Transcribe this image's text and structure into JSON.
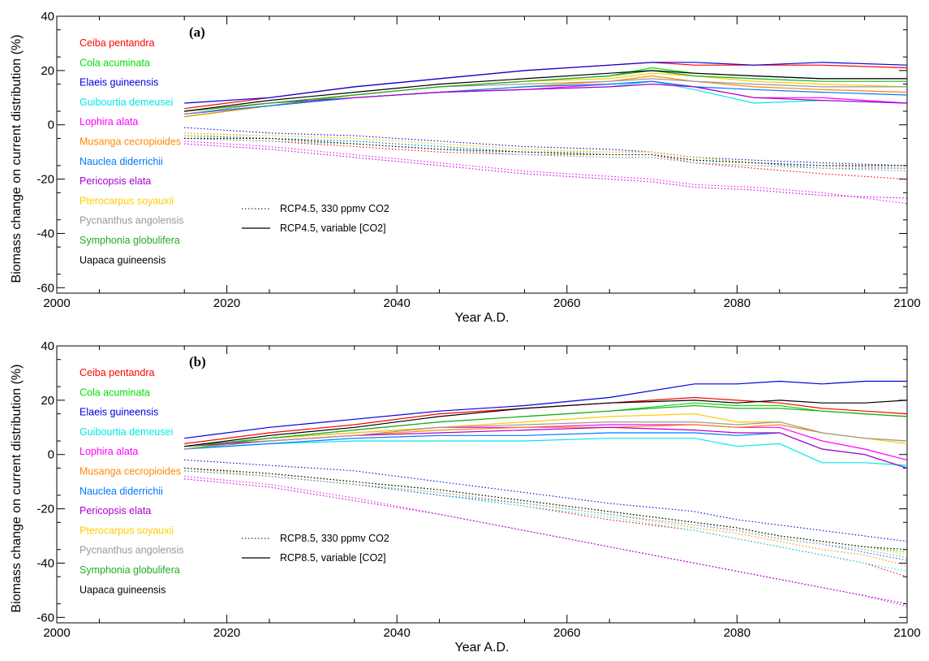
{
  "figure": {
    "panels": [
      {
        "panel_label": "(a)",
        "xlabel": "Year A.D.",
        "ylabel": "Biomass change on current distribution (%)",
        "legend_dotted": "RCP4.5, 330 ppmv CO2",
        "legend_solid": "RCP4.5, variable [CO2]"
      },
      {
        "panel_label": "(b)",
        "xlabel": "Year A.D.",
        "ylabel": "Biomass change on current distribution (%)",
        "legend_dotted": "RCP8.5, 330 ppmv CO2",
        "legend_solid": "RCP8.5, variable [CO2]"
      }
    ]
  },
  "chart_data": [
    {
      "type": "line",
      "title": "(a)",
      "xlabel": "Year A.D.",
      "ylabel": "Biomass change on current distribution (%)",
      "xlim": [
        2000,
        2100
      ],
      "ylim": [
        -62,
        40
      ],
      "xticks": [
        2000,
        2020,
        2040,
        2060,
        2080,
        2100
      ],
      "yticks": [
        40,
        20,
        0,
        -20,
        -40,
        -60
      ],
      "grid": false,
      "legend_placement": "left",
      "line_styles": {
        "dotted": "RCP4.5, 330 ppmv CO2",
        "solid": "RCP4.5, variable [CO2]"
      },
      "x": [
        2015,
        2025,
        2035,
        2045,
        2055,
        2065,
        2070,
        2075,
        2082,
        2090,
        2100
      ],
      "series": [
        {
          "name": "Ceiba pentandra",
          "color": "#ff0000",
          "variable": [
            6,
            10,
            14,
            17,
            20,
            22,
            23,
            22,
            22,
            22,
            21
          ],
          "fixed": [
            -5,
            -6,
            -8,
            -10,
            -11,
            -11,
            -11,
            -14,
            -16,
            -18,
            -20
          ]
        },
        {
          "name": "Cola acuminata",
          "color": "#00e000",
          "variable": [
            3,
            7,
            11,
            14,
            16,
            18,
            21,
            19,
            18,
            17,
            17
          ],
          "fixed": [
            -4,
            -5,
            -6,
            -8,
            -10,
            -10,
            -10,
            -12,
            -14,
            -15,
            -15
          ]
        },
        {
          "name": "Elaeis guineensis",
          "color": "#0000dd",
          "variable": [
            8,
            10,
            14,
            17,
            20,
            22,
            23,
            23,
            22,
            23,
            22
          ],
          "fixed": [
            -1,
            -3,
            -4,
            -6,
            -8,
            -9,
            -10,
            -12,
            -13,
            -14,
            -15
          ]
        },
        {
          "name": "Guibourtia demeusei",
          "color": "#00e8e8",
          "variable": [
            4,
            7,
            10,
            12,
            13,
            14,
            16,
            13,
            8,
            9,
            8
          ],
          "fixed": [
            -5,
            -6,
            -7,
            -9,
            -11,
            -12,
            -12,
            -14,
            -15,
            -16,
            -17
          ]
        },
        {
          "name": "Lophira alata",
          "color": "#ff00ff",
          "variable": [
            4,
            7,
            10,
            12,
            13,
            15,
            16,
            14,
            10,
            10,
            8
          ],
          "fixed": [
            -6,
            -8,
            -11,
            -14,
            -17,
            -19,
            -20,
            -22,
            -23,
            -25,
            -29
          ]
        },
        {
          "name": "Musanga cecropioides",
          "color": "#ff8800",
          "variable": [
            3,
            7,
            10,
            12,
            14,
            16,
            18,
            16,
            14,
            13,
            12
          ],
          "fixed": [
            -3,
            -4,
            -5,
            -7,
            -9,
            -10,
            -10,
            -12,
            -14,
            -15,
            -16
          ]
        },
        {
          "name": "Nauclea diderrichii",
          "color": "#0077ff",
          "variable": [
            4,
            7,
            10,
            12,
            14,
            15,
            16,
            14,
            13,
            12,
            11
          ],
          "fixed": [
            -4,
            -5,
            -6,
            -8,
            -10,
            -11,
            -11,
            -13,
            -14,
            -16,
            -16
          ]
        },
        {
          "name": "Pericopsis elata",
          "color": "#aa00cc",
          "variable": [
            5,
            8,
            10,
            12,
            13,
            14,
            15,
            14,
            10,
            9,
            8
          ],
          "fixed": [
            -7,
            -9,
            -12,
            -15,
            -18,
            -20,
            -21,
            -23,
            -24,
            -26,
            -27
          ]
        },
        {
          "name": "Pterocarpus soyauxii",
          "color": "#ffcc00",
          "variable": [
            5,
            8,
            11,
            14,
            16,
            17,
            19,
            18,
            16,
            15,
            14
          ],
          "fixed": [
            -4,
            -4,
            -5,
            -7,
            -9,
            -10,
            -10,
            -12,
            -14,
            -15,
            -15
          ]
        },
        {
          "name": "Pycnanthus angolensis",
          "color": "#999999",
          "variable": [
            4,
            8,
            11,
            14,
            15,
            16,
            17,
            16,
            15,
            14,
            14
          ],
          "fixed": [
            -5,
            -6,
            -7,
            -9,
            -11,
            -12,
            -12,
            -14,
            -15,
            -16,
            -17
          ]
        },
        {
          "name": "Symphonia globulifera",
          "color": "#22aa22",
          "variable": [
            5,
            8,
            11,
            14,
            16,
            18,
            20,
            18,
            17,
            16,
            16
          ],
          "fixed": [
            -5,
            -5,
            -7,
            -9,
            -10,
            -11,
            -11,
            -13,
            -14,
            -15,
            -15
          ]
        },
        {
          "name": "Uapaca guineensis",
          "color": "#000000",
          "variable": [
            5,
            9,
            12,
            15,
            17,
            19,
            20,
            19,
            18,
            17,
            17
          ],
          "fixed": [
            -5,
            -5,
            -7,
            -9,
            -10,
            -11,
            -11,
            -13,
            -14,
            -15,
            -15
          ]
        }
      ]
    },
    {
      "type": "line",
      "title": "(b)",
      "xlabel": "Year A.D.",
      "ylabel": "Biomass change on current distribution (%)",
      "xlim": [
        2000,
        2100
      ],
      "ylim": [
        -62,
        40
      ],
      "xticks": [
        2000,
        2020,
        2040,
        2060,
        2080,
        2100
      ],
      "yticks": [
        40,
        20,
        0,
        -20,
        -40,
        -60
      ],
      "grid": false,
      "legend_placement": "left",
      "line_styles": {
        "dotted": "RCP8.5, 330 ppmv CO2",
        "solid": "RCP8.5, variable [CO2]"
      },
      "x": [
        2015,
        2025,
        2035,
        2045,
        2055,
        2065,
        2075,
        2080,
        2085,
        2090,
        2095,
        2100
      ],
      "series": [
        {
          "name": "Ceiba pentandra",
          "color": "#ff0000",
          "variable": [
            4,
            8,
            11,
            15,
            17,
            19,
            21,
            20,
            19,
            17,
            16,
            15
          ],
          "fixed": [
            -6,
            -8,
            -11,
            -15,
            -19,
            -24,
            -28,
            -31,
            -34,
            -37,
            -40,
            -45
          ]
        },
        {
          "name": "Cola acuminata",
          "color": "#00e000",
          "variable": [
            2,
            6,
            9,
            12,
            14,
            16,
            19,
            18,
            18,
            16,
            15,
            14
          ],
          "fixed": [
            -5,
            -7,
            -10,
            -13,
            -17,
            -21,
            -25,
            -27,
            -30,
            -32,
            -34,
            -36
          ]
        },
        {
          "name": "Elaeis guineensis",
          "color": "#0000dd",
          "variable": [
            6,
            10,
            13,
            16,
            18,
            21,
            26,
            26,
            27,
            26,
            27,
            27
          ],
          "fixed": [
            -2,
            -4,
            -6,
            -10,
            -14,
            -18,
            -21,
            -24,
            -26,
            -28,
            -30,
            -32
          ]
        },
        {
          "name": "Guibourtia demeusei",
          "color": "#00e8e8",
          "variable": [
            2,
            4,
            5,
            5,
            5,
            6,
            6,
            3,
            4,
            -3,
            -3,
            -4
          ],
          "fixed": [
            -6,
            -8,
            -11,
            -15,
            -19,
            -23,
            -28,
            -31,
            -34,
            -37,
            -40,
            -43
          ]
        },
        {
          "name": "Lophira alata",
          "color": "#ff00ff",
          "variable": [
            3,
            6,
            8,
            10,
            10,
            11,
            11,
            10,
            10,
            5,
            2,
            -2
          ],
          "fixed": [
            -8,
            -11,
            -16,
            -22,
            -28,
            -34,
            -40,
            -43,
            -46,
            -49,
            -52,
            -56
          ]
        },
        {
          "name": "Musanga cecropioides",
          "color": "#ff8800",
          "variable": [
            3,
            5,
            7,
            9,
            10,
            10,
            11,
            10,
            11,
            8,
            6,
            5
          ],
          "fixed": [
            -5,
            -8,
            -11,
            -14,
            -18,
            -22,
            -27,
            -29,
            -32,
            -35,
            -37,
            -41
          ]
        },
        {
          "name": "Nauclea diderrichii",
          "color": "#0077ff",
          "variable": [
            2,
            4,
            6,
            7,
            7,
            8,
            8,
            7,
            8,
            2,
            0,
            -5
          ],
          "fixed": [
            -6,
            -8,
            -11,
            -15,
            -18,
            -22,
            -26,
            -28,
            -31,
            -33,
            -36,
            -39
          ]
        },
        {
          "name": "Pericopsis elata",
          "color": "#aa00cc",
          "variable": [
            3,
            5,
            7,
            8,
            9,
            10,
            9,
            8,
            8,
            2,
            0,
            -5
          ],
          "fixed": [
            -9,
            -12,
            -17,
            -22,
            -28,
            -34,
            -40,
            -43,
            -46,
            -49,
            -52,
            -55
          ]
        },
        {
          "name": "Pterocarpus soyauxii",
          "color": "#ffcc00",
          "variable": [
            3,
            6,
            8,
            10,
            12,
            14,
            15,
            12,
            12,
            8,
            6,
            4
          ],
          "fixed": [
            -5,
            -7,
            -10,
            -13,
            -17,
            -21,
            -25,
            -27,
            -30,
            -32,
            -34,
            -37
          ]
        },
        {
          "name": "Pycnanthus angolensis",
          "color": "#999999",
          "variable": [
            2,
            5,
            7,
            10,
            11,
            12,
            12,
            11,
            12,
            8,
            6,
            5
          ],
          "fixed": [
            -6,
            -8,
            -11,
            -14,
            -18,
            -22,
            -26,
            -28,
            -31,
            -33,
            -35,
            -38
          ]
        },
        {
          "name": "Symphonia globulifera",
          "color": "#22aa22",
          "variable": [
            3,
            6,
            9,
            12,
            14,
            16,
            18,
            17,
            17,
            16,
            15,
            14
          ],
          "fixed": [
            -5,
            -7,
            -10,
            -13,
            -17,
            -21,
            -25,
            -27,
            -30,
            -32,
            -34,
            -35
          ]
        },
        {
          "name": "Uapaca guineensis",
          "color": "#000000",
          "variable": [
            3,
            7,
            10,
            14,
            17,
            19,
            20,
            19,
            20,
            19,
            19,
            20
          ],
          "fixed": [
            -5,
            -7,
            -10,
            -13,
            -17,
            -21,
            -25,
            -27,
            -30,
            -32,
            -34,
            -35
          ]
        }
      ]
    }
  ]
}
